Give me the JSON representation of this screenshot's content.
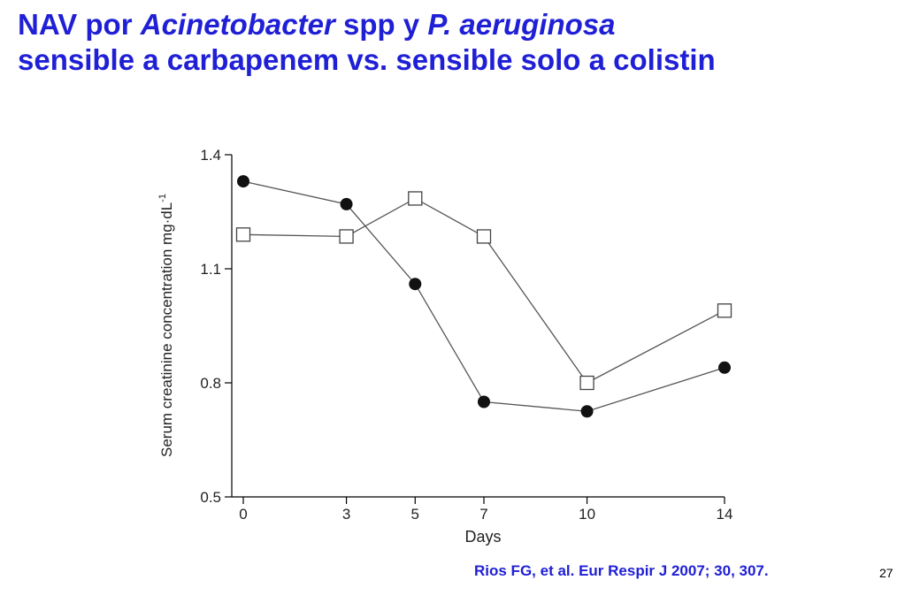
{
  "slide": {
    "title_line1": {
      "part1": "NAV por ",
      "part2_italic": "Acinetobacter",
      "part3": " spp y ",
      "part4_italic": "P. aeruginosa"
    },
    "title_line2": "sensible a carbapenem vs. sensible solo a colistin",
    "citation": "Rios FG, et al. Eur Respir J 2007; 30, 307.",
    "slide_number": "27",
    "title_color": "#1f1fd6"
  },
  "chart_data": {
    "type": "line",
    "xlabel": "Days",
    "ylabel": "Serum creatinine concentration mg·dL",
    "ylabel_superscript": "-1",
    "ylim": [
      0.5,
      1.4
    ],
    "yticks": [
      "0.5",
      "0.8",
      "1.1",
      "1.4"
    ],
    "categories": [
      "0",
      "3",
      "5",
      "7",
      "10",
      "14"
    ],
    "grid": false,
    "legend": "none",
    "series": [
      {
        "marker": "filled-circle",
        "values": [
          1.33,
          1.27,
          1.06,
          0.75,
          0.725,
          0.84
        ]
      },
      {
        "marker": "open-square",
        "values": [
          1.19,
          1.185,
          1.285,
          1.185,
          0.8,
          0.99
        ]
      }
    ]
  }
}
